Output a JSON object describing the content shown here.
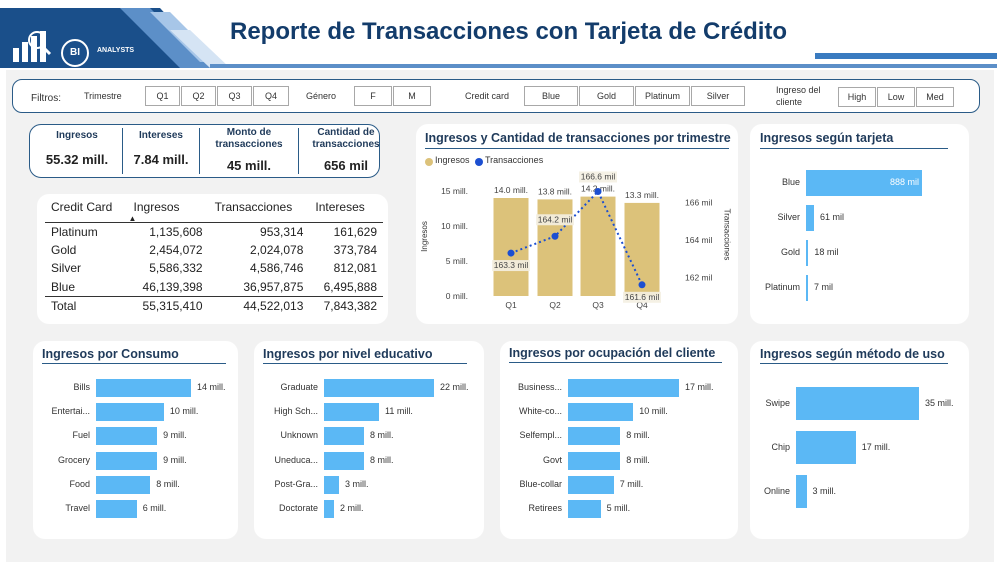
{
  "header": {
    "title": "Reporte de Transacciones con Tarjeta de Crédito",
    "logo_text": "BI",
    "logo_subtext": "ANALYSTS"
  },
  "filters": {
    "label": "Filtros:",
    "trimestre": {
      "label": "Trimestre",
      "options": [
        "Q1",
        "Q2",
        "Q3",
        "Q4"
      ]
    },
    "genero": {
      "label": "Género",
      "options": [
        "F",
        "M"
      ]
    },
    "credit_card": {
      "label": "Credit card",
      "options": [
        "Blue",
        "Gold",
        "Platinum",
        "Silver"
      ]
    },
    "ingreso": {
      "label": "Ingreso del cliente",
      "options": [
        "High",
        "Low",
        "Med"
      ]
    }
  },
  "kpis": [
    {
      "label": "Ingresos",
      "value": "55.32 mill."
    },
    {
      "label": "Intereses",
      "value": "7.84 mill."
    },
    {
      "label": "Monto de transacciones",
      "value": "45 mill."
    },
    {
      "label": "Cantidad de transacciones",
      "value": "656 mil"
    }
  ],
  "card_table": {
    "columns": [
      "Credit Card",
      "Ingresos",
      "Transacciones",
      "Intereses"
    ],
    "sort_indicator": "▲",
    "rows": [
      [
        "Platinum",
        "1,135,608",
        "953,314",
        "161,629"
      ],
      [
        "Gold",
        "2,454,072",
        "2,024,078",
        "373,784"
      ],
      [
        "Silver",
        "5,586,332",
        "4,586,746",
        "812,081"
      ],
      [
        "Blue",
        "46,139,398",
        "36,957,875",
        "6,495,888"
      ]
    ],
    "total": [
      "Total",
      "55,315,410",
      "44,522,013",
      "7,843,382"
    ]
  },
  "colors": {
    "bar_blue": "#5bb8f5",
    "bar_gold": "#dcc27a",
    "line_blue": "#1c4fd1",
    "title_navy": "#1f3a5a"
  },
  "chart_data": [
    {
      "type": "bar",
      "title": "Ingresos y Cantidad de transacciones por trimestre",
      "categories": [
        "Q1",
        "Q2",
        "Q3",
        "Q4"
      ],
      "series": [
        {
          "name": "Ingresos",
          "values": [
            14.0,
            13.8,
            14.2,
            13.3
          ],
          "labels": [
            "14.0 mill.",
            "13.8 mill.",
            "14.2 mill.",
            "13.3 mill."
          ]
        },
        {
          "name": "Transacciones",
          "chart_kind": "line",
          "values": [
            163.3,
            164.2,
            166.6,
            161.6
          ],
          "labels": [
            "163.3 mil",
            "164.2 mil",
            "166.6 mil",
            "161.6 mil"
          ]
        }
      ],
      "ylabel": "Ingresos",
      "y2label": "Transacciones",
      "yticks": [
        "0 mill.",
        "5 mill.",
        "10 mill.",
        "15 mill."
      ],
      "y2ticks": [
        "162 mil",
        "164 mil",
        "166 mil"
      ],
      "ylim": [
        0,
        16
      ],
      "y2lim": [
        161,
        167
      ],
      "legend": "top-left"
    },
    {
      "type": "bar",
      "title": "Ingresos según tarjeta",
      "categories": [
        "Blue",
        "Silver",
        "Gold",
        "Platinum"
      ],
      "values": [
        888,
        61,
        18,
        7
      ],
      "labels": [
        "888 mil",
        "61 mil",
        "18 mil",
        "7 mil"
      ]
    },
    {
      "type": "bar",
      "title": "Ingresos por Consumo",
      "categories": [
        "Bills",
        "Entertai...",
        "Fuel",
        "Grocery",
        "Food",
        "Travel"
      ],
      "values": [
        14,
        10,
        9,
        9,
        8,
        6
      ],
      "labels": [
        "14 mill.",
        "10 mill.",
        "9 mill.",
        "9 mill.",
        "8 mill.",
        "6 mill."
      ]
    },
    {
      "type": "bar",
      "title": "Ingresos por nivel educativo",
      "categories": [
        "Graduate",
        "High Sch...",
        "Unknown",
        "Uneduca...",
        "Post-Gra...",
        "Doctorate"
      ],
      "values": [
        22,
        11,
        8,
        8,
        3,
        2
      ],
      "labels": [
        "22 mill.",
        "11 mill.",
        "8 mill.",
        "8 mill.",
        "3 mill.",
        "2 mill."
      ]
    },
    {
      "type": "bar",
      "title": "Ingresos por ocupación del cliente",
      "categories": [
        "Business...",
        "White-co...",
        "Selfempl...",
        "Govt",
        "Blue-collar",
        "Retirees"
      ],
      "values": [
        17,
        10,
        8,
        8,
        7,
        5
      ],
      "labels": [
        "17 mill.",
        "10 mill.",
        "8 mill.",
        "8 mill.",
        "7 mill.",
        "5 mill."
      ]
    },
    {
      "type": "bar",
      "title": "Ingresos según método de uso",
      "categories": [
        "Swipe",
        "Chip",
        "Online"
      ],
      "values": [
        35,
        17,
        3
      ],
      "labels": [
        "35 mill.",
        "17 mill.",
        "3 mill."
      ]
    }
  ]
}
